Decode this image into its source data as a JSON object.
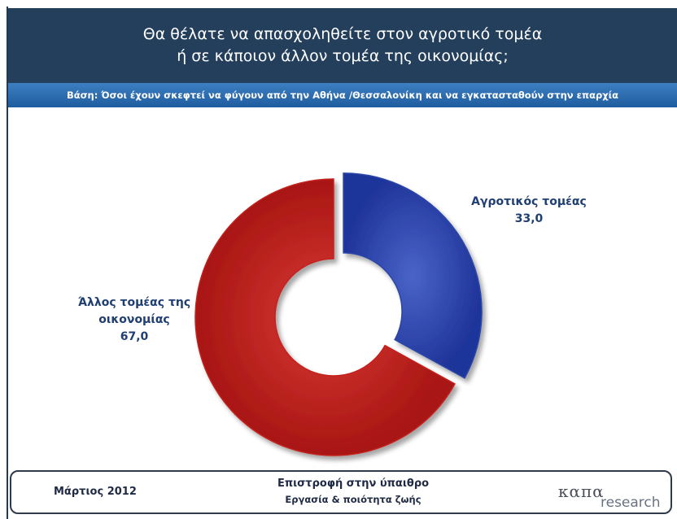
{
  "header": {
    "title_line1": "Θα θέλατε να απασχοληθείτε στον αγροτικό τομέα",
    "title_line2": "ή σε κάποιον άλλον τομέα της οικονομίας;"
  },
  "base_text": "Βάση: Όσοι έχουν σκεφτεί να φύγουν από την Αθήνα /Θεσσαλονίκη και να εγκατασταθούν στην επαρχία",
  "chart_data": {
    "type": "pie",
    "donut": true,
    "categories": [
      "Αγροτικός τομέας",
      "Άλλος τομέας της οικονομίας"
    ],
    "values": [
      33.0,
      67.0
    ],
    "value_labels": [
      "33,0",
      "67,0"
    ],
    "label_lines": [
      [
        "Αγροτικός τομέας"
      ],
      [
        "Άλλος τομέας της",
        "οικονομίας"
      ]
    ],
    "colors": [
      "#2a46a8",
      "#c4231f"
    ],
    "exploded": "Αγροτικός τομέας"
  },
  "footer": {
    "date": "Μάρτιος 2012",
    "title": "Επιστροφή στην ύπαιθρο",
    "subtitle": "Εργασία & ποιότητα ζωής",
    "logo_line1": "καπα",
    "logo_line2": "research"
  }
}
